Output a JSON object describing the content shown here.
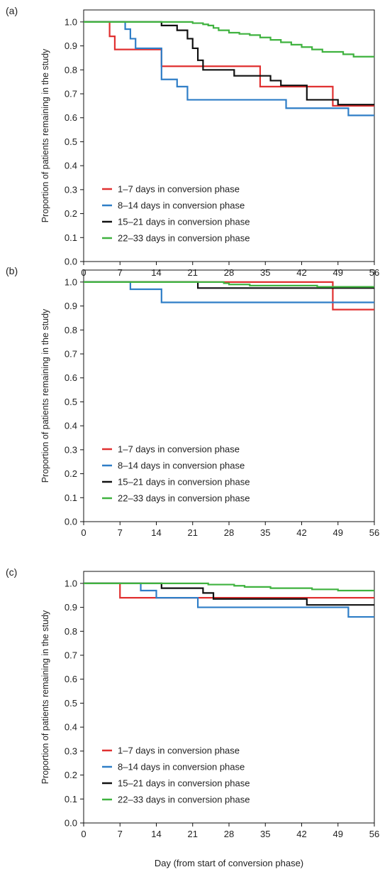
{
  "figure": {
    "xlabel": "Day (from start of conversion phase)",
    "ylabel": "Proportion of patients remaining in the study"
  },
  "colors": {
    "1–7 days in conversion phase": "#e03030",
    "8–14 days in conversion phase": "#2f7ec7",
    "15–21 days in conversion phase": "#111111",
    "22–33 days in conversion phase": "#3fb23f"
  },
  "chart_data": [
    {
      "type": "line",
      "panel_label": "(a)",
      "xlim": [
        0,
        56
      ],
      "ylim": [
        0,
        1.05
      ],
      "xticks": [
        0,
        7,
        14,
        21,
        28,
        35,
        42,
        49,
        56
      ],
      "yticks": [
        0.0,
        0.1,
        0.2,
        0.3,
        0.4,
        0.5,
        0.6,
        0.7,
        0.8,
        0.9,
        1.0
      ],
      "ytick_labels": [
        "0.0",
        "0.1",
        "0.2",
        "0.3",
        "0.4",
        "0.5",
        "0.6",
        "0.7",
        "0.8",
        "0.9",
        "1.0"
      ],
      "legend_position": "bottom-left",
      "series": [
        {
          "name": "1–7 days in conversion phase",
          "step": true,
          "points": [
            [
              0,
              1.0
            ],
            [
              5,
              0.94
            ],
            [
              6,
              0.885
            ],
            [
              15,
              0.815
            ],
            [
              34,
              0.73
            ],
            [
              48,
              0.65
            ],
            [
              56,
              0.65
            ]
          ]
        },
        {
          "name": "8–14 days in conversion phase",
          "step": true,
          "points": [
            [
              0,
              1.0
            ],
            [
              8,
              0.97
            ],
            [
              9,
              0.93
            ],
            [
              10,
              0.89
            ],
            [
              15,
              0.76
            ],
            [
              18,
              0.73
            ],
            [
              20,
              0.675
            ],
            [
              39,
              0.64
            ],
            [
              51,
              0.61
            ],
            [
              56,
              0.61
            ]
          ]
        },
        {
          "name": "15–21 days in conversion phase",
          "step": true,
          "points": [
            [
              0,
              1.0
            ],
            [
              15,
              0.985
            ],
            [
              18,
              0.965
            ],
            [
              20,
              0.93
            ],
            [
              21,
              0.89
            ],
            [
              22,
              0.84
            ],
            [
              23,
              0.8
            ],
            [
              29,
              0.775
            ],
            [
              36,
              0.755
            ],
            [
              38,
              0.735
            ],
            [
              43,
              0.675
            ],
            [
              49,
              0.655
            ],
            [
              56,
              0.655
            ]
          ]
        },
        {
          "name": "22–33 days in conversion phase",
          "step": true,
          "points": [
            [
              0,
              1.0
            ],
            [
              21,
              0.995
            ],
            [
              23,
              0.99
            ],
            [
              24,
              0.985
            ],
            [
              25,
              0.975
            ],
            [
              26,
              0.965
            ],
            [
              28,
              0.955
            ],
            [
              30,
              0.95
            ],
            [
              32,
              0.945
            ],
            [
              34,
              0.935
            ],
            [
              36,
              0.925
            ],
            [
              38,
              0.915
            ],
            [
              40,
              0.905
            ],
            [
              42,
              0.895
            ],
            [
              44,
              0.885
            ],
            [
              46,
              0.875
            ],
            [
              50,
              0.865
            ],
            [
              52,
              0.855
            ],
            [
              56,
              0.855
            ]
          ]
        }
      ]
    },
    {
      "type": "line",
      "panel_label": "(b)",
      "xlim": [
        0,
        56
      ],
      "ylim": [
        0,
        1.05
      ],
      "xticks": [
        0,
        7,
        14,
        21,
        28,
        35,
        42,
        49,
        56
      ],
      "yticks": [
        0.0,
        0.1,
        0.2,
        0.3,
        0.4,
        0.5,
        0.6,
        0.7,
        0.8,
        0.9,
        1.0
      ],
      "ytick_labels": [
        "0.0",
        "0.1",
        "0.2",
        "0.3",
        "0.4",
        "0.5",
        "0.6",
        "0.7",
        "0.8",
        "0.9",
        "1.0"
      ],
      "legend_position": "bottom-left",
      "series": [
        {
          "name": "1–7 days in conversion phase",
          "step": true,
          "points": [
            [
              0,
              1.0
            ],
            [
              48,
              0.885
            ],
            [
              56,
              0.885
            ]
          ]
        },
        {
          "name": "8–14 days in conversion phase",
          "step": true,
          "points": [
            [
              0,
              1.0
            ],
            [
              9,
              0.97
            ],
            [
              15,
              0.915
            ],
            [
              56,
              0.915
            ]
          ]
        },
        {
          "name": "15–21 days in conversion phase",
          "step": true,
          "points": [
            [
              0,
              1.0
            ],
            [
              22,
              0.975
            ],
            [
              56,
              0.975
            ]
          ]
        },
        {
          "name": "22–33 days in conversion phase",
          "step": true,
          "points": [
            [
              0,
              1.0
            ],
            [
              27,
              0.995
            ],
            [
              28,
              0.99
            ],
            [
              32,
              0.985
            ],
            [
              45,
              0.98
            ],
            [
              56,
              0.98
            ]
          ]
        }
      ]
    },
    {
      "type": "line",
      "panel_label": "(c)",
      "xlim": [
        0,
        56
      ],
      "ylim": [
        0,
        1.05
      ],
      "xticks": [
        0,
        7,
        14,
        21,
        28,
        35,
        42,
        49,
        56
      ],
      "yticks": [
        0.0,
        0.1,
        0.2,
        0.3,
        0.4,
        0.5,
        0.6,
        0.7,
        0.8,
        0.9,
        1.0
      ],
      "ytick_labels": [
        "0.0",
        "0.1",
        "0.2",
        "0.3",
        "0.4",
        "0.5",
        "0.6",
        "0.7",
        "0.8",
        "0.9",
        "1.0"
      ],
      "legend_position": "bottom-left",
      "series": [
        {
          "name": "1–7 days in conversion phase",
          "step": true,
          "points": [
            [
              0,
              1.0
            ],
            [
              7,
              0.94
            ],
            [
              56,
              0.94
            ]
          ]
        },
        {
          "name": "8–14 days in conversion phase",
          "step": true,
          "points": [
            [
              0,
              1.0
            ],
            [
              11,
              0.97
            ],
            [
              14,
              0.94
            ],
            [
              22,
              0.9
            ],
            [
              51,
              0.86
            ],
            [
              56,
              0.86
            ]
          ]
        },
        {
          "name": "15–21 days in conversion phase",
          "step": true,
          "points": [
            [
              0,
              1.0
            ],
            [
              15,
              0.98
            ],
            [
              23,
              0.96
            ],
            [
              25,
              0.935
            ],
            [
              43,
              0.91
            ],
            [
              56,
              0.91
            ]
          ]
        },
        {
          "name": "22–33 days in conversion phase",
          "step": true,
          "points": [
            [
              0,
              1.0
            ],
            [
              24,
              0.995
            ],
            [
              29,
              0.99
            ],
            [
              31,
              0.985
            ],
            [
              36,
              0.98
            ],
            [
              44,
              0.975
            ],
            [
              49,
              0.97
            ],
            [
              56,
              0.97
            ]
          ]
        }
      ]
    }
  ]
}
